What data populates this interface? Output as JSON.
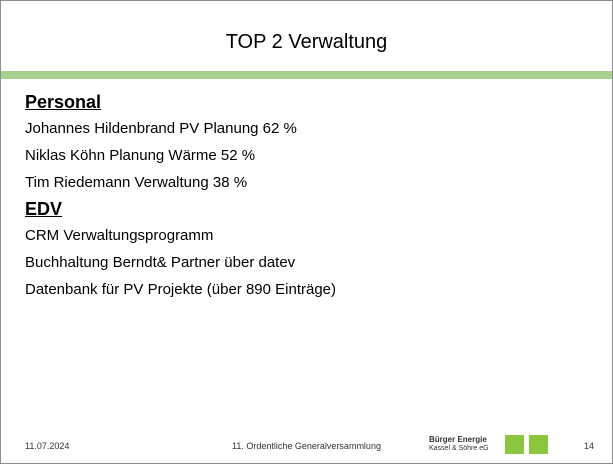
{
  "title": "TOP 2 Verwaltung",
  "sections": [
    {
      "heading": "Personal",
      "items": [
        "Johannes Hildenbrand PV Planung 62  %",
        "Niklas Köhn Planung Wärme 52 %",
        "Tim Riedemann Verwaltung 38 %"
      ]
    },
    {
      "heading": "EDV",
      "items": [
        "CRM Verwaltungsprogramm",
        "Buchhaltung Berndt& Partner über datev",
        "Datenbank für PV Projekte (über 890 Einträge)"
      ]
    }
  ],
  "footer": {
    "date": "11.07.2024",
    "event": "11. Ordentliche Generalversammlung",
    "logo": [
      "Bürger Energie",
      "Kassel & Söhre eG"
    ],
    "page": "14"
  }
}
